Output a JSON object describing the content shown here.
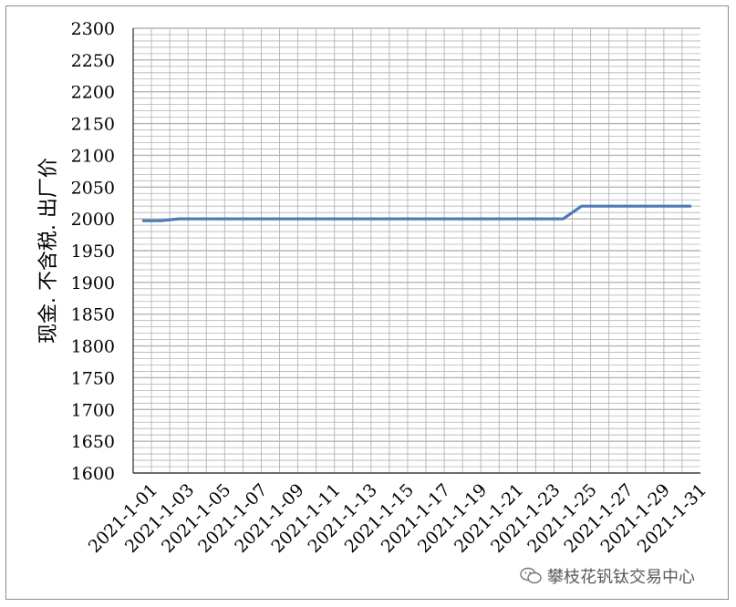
{
  "chart_data": {
    "type": "line",
    "title": "",
    "xlabel": "",
    "ylabel": "现金. 不含税. 出厂价",
    "ylim": [
      1600,
      2300
    ],
    "yticks": [
      1600,
      1650,
      1700,
      1750,
      1800,
      1850,
      1900,
      1950,
      2000,
      2050,
      2100,
      2150,
      2200,
      2250,
      2300
    ],
    "x": [
      "2021-1-01",
      "2021-1-02",
      "2021-1-03",
      "2021-1-04",
      "2021-1-05",
      "2021-1-06",
      "2021-1-07",
      "2021-1-08",
      "2021-1-09",
      "2021-1-10",
      "2021-1-11",
      "2021-1-12",
      "2021-1-13",
      "2021-1-14",
      "2021-1-15",
      "2021-1-16",
      "2021-1-17",
      "2021-1-18",
      "2021-1-19",
      "2021-1-20",
      "2021-1-21",
      "2021-1-22",
      "2021-1-23",
      "2021-1-24",
      "2021-1-25",
      "2021-1-26",
      "2021-1-27",
      "2021-1-28",
      "2021-1-29",
      "2021-1-30",
      "2021-1-31"
    ],
    "x_tick_labels": [
      "2021-1-01",
      "2021-1-03",
      "2021-1-05",
      "2021-1-07",
      "2021-1-09",
      "2021-1-11",
      "2021-1-13",
      "2021-1-15",
      "2021-1-17",
      "2021-1-19",
      "2021-1-21",
      "2021-1-23",
      "2021-1-25",
      "2021-1-27",
      "2021-1-29",
      "2021-1-31"
    ],
    "series": [
      {
        "values": [
          1997,
          1997,
          2000,
          2000,
          2000,
          2000,
          2000,
          2000,
          2000,
          2000,
          2000,
          2000,
          2000,
          2000,
          2000,
          2000,
          2000,
          2000,
          2000,
          2000,
          2000,
          2000,
          2000,
          2000,
          2020,
          2020,
          2020,
          2020,
          2020,
          2020,
          2020
        ]
      }
    ],
    "grid": true,
    "legend": "none",
    "colors": {
      "line": "#4f7bb5",
      "grid": "#b4b4b4",
      "axis": "#000000"
    }
  },
  "watermark": {
    "icon": "wechat-icon",
    "text": "攀枝花钒钛交易中心"
  }
}
